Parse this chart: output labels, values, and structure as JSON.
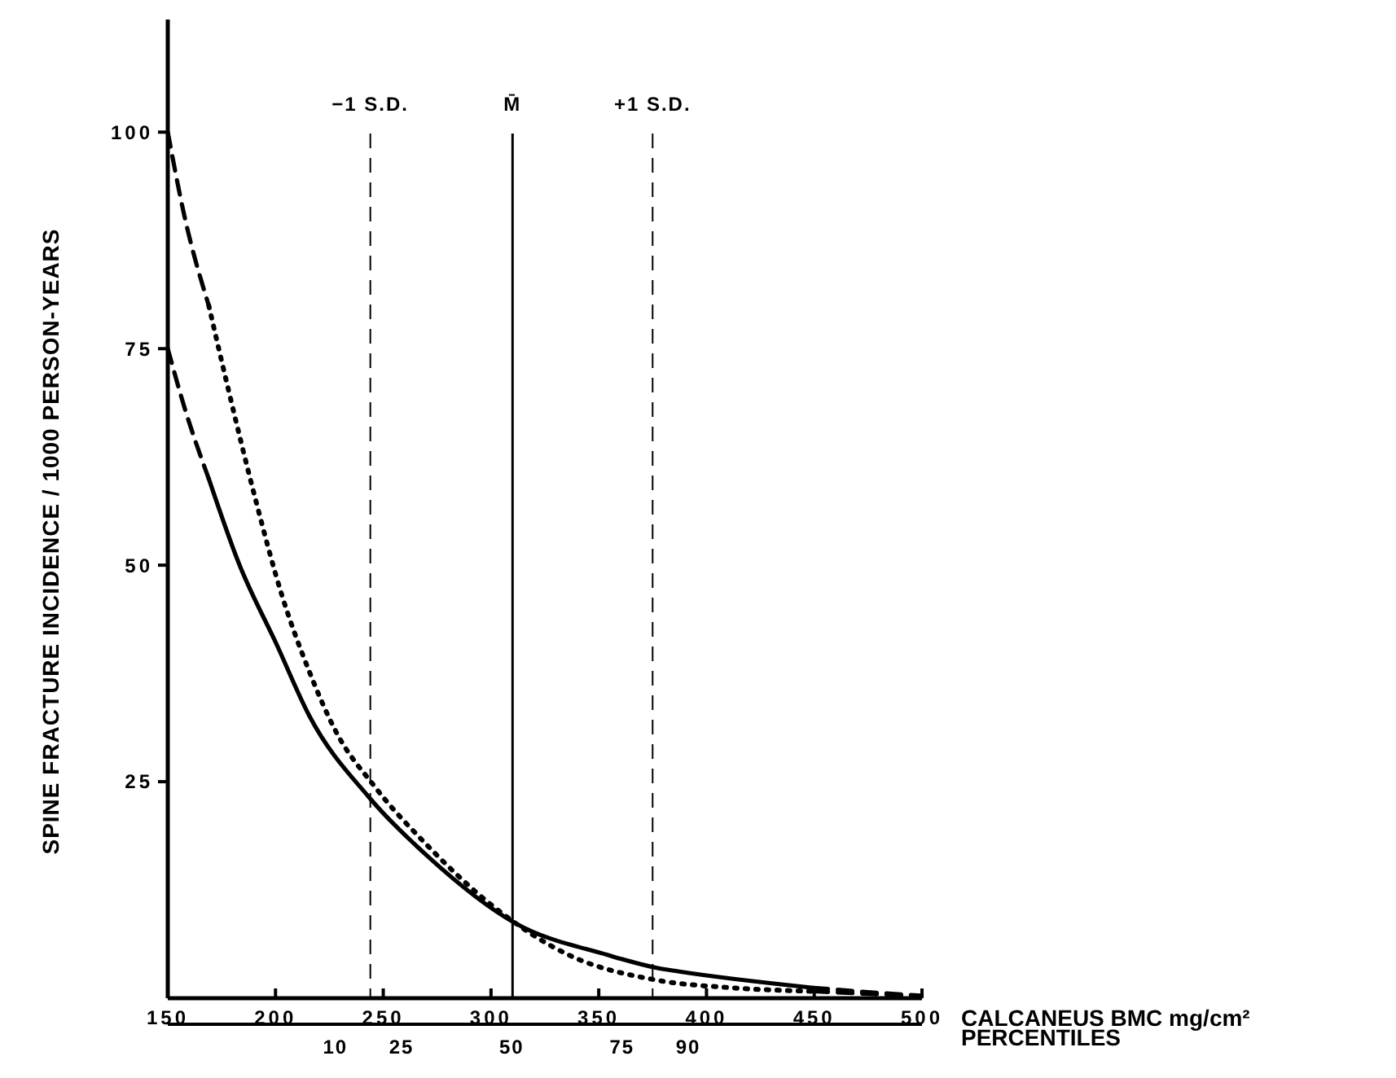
{
  "chart_data": {
    "type": "line",
    "xlabel": "CALCANEUS BMC mg/cm²",
    "ylabel": "SPINE FRACTURE INCIDENCE / 1000 PERSON-YEARS",
    "x2label": "PERCENTILES",
    "xlim": [
      150,
      500
    ],
    "xticks": [
      150,
      200,
      250,
      300,
      350,
      400,
      450,
      500
    ],
    "ylim": [
      0,
      113
    ],
    "yticks": [
      25,
      50,
      75,
      100
    ],
    "x2lim": [
      -28,
      143
    ],
    "x2ticks": [
      10,
      25,
      50,
      75,
      90
    ],
    "series": [
      {
        "color": "#000000",
        "line_style": "dashed",
        "x": [
          150,
          158,
          169
        ],
        "values": [
          100,
          90,
          80
        ]
      },
      {
        "color": "#000000",
        "line_style": "dotted",
        "x": [
          169,
          178,
          190.5,
          203,
          215.7,
          228,
          245.8,
          271,
          301,
          336,
          376.6,
          412,
          449.6
        ],
        "values": [
          80,
          70.4,
          57.8,
          46.5,
          37.7,
          30.8,
          24.5,
          17.5,
          10.6,
          5,
          2.1,
          1.2,
          0.8
        ]
      },
      {
        "color": "#000000",
        "line_style": "dashed",
        "x": [
          449.6,
          475,
          499.4
        ],
        "values": [
          0.8,
          0.5,
          0.2
        ]
      },
      {
        "color": "#000000",
        "line_style": "dashed",
        "x": [
          150,
          158,
          169
        ],
        "values": [
          75,
          68,
          60
        ]
      },
      {
        "color": "#000000",
        "line_style": "solid",
        "x": [
          169,
          183,
          200.6,
          215.7,
          243.4,
          271,
          311,
          354,
          376.9,
          386.8,
          449.6
        ],
        "values": [
          60,
          50.2,
          40.8,
          32.6,
          23.2,
          16.3,
          8.7,
          5,
          3.5,
          3.1,
          1.2
        ]
      },
      {
        "color": "#000000",
        "line_style": "dashed",
        "x": [
          449.6,
          475,
          499.4
        ],
        "values": [
          1.2,
          0.7,
          0.3
        ]
      }
    ],
    "ref_lines": [
      {
        "axis": "x",
        "value": 244,
        "label": "−1 S.D.",
        "line_style": "dashed"
      },
      {
        "axis": "x",
        "value": 310,
        "label": "M̄",
        "line_style": "solid"
      },
      {
        "axis": "x",
        "value": 375,
        "label": "+1 S.D.",
        "line_style": "dashed"
      }
    ]
  }
}
